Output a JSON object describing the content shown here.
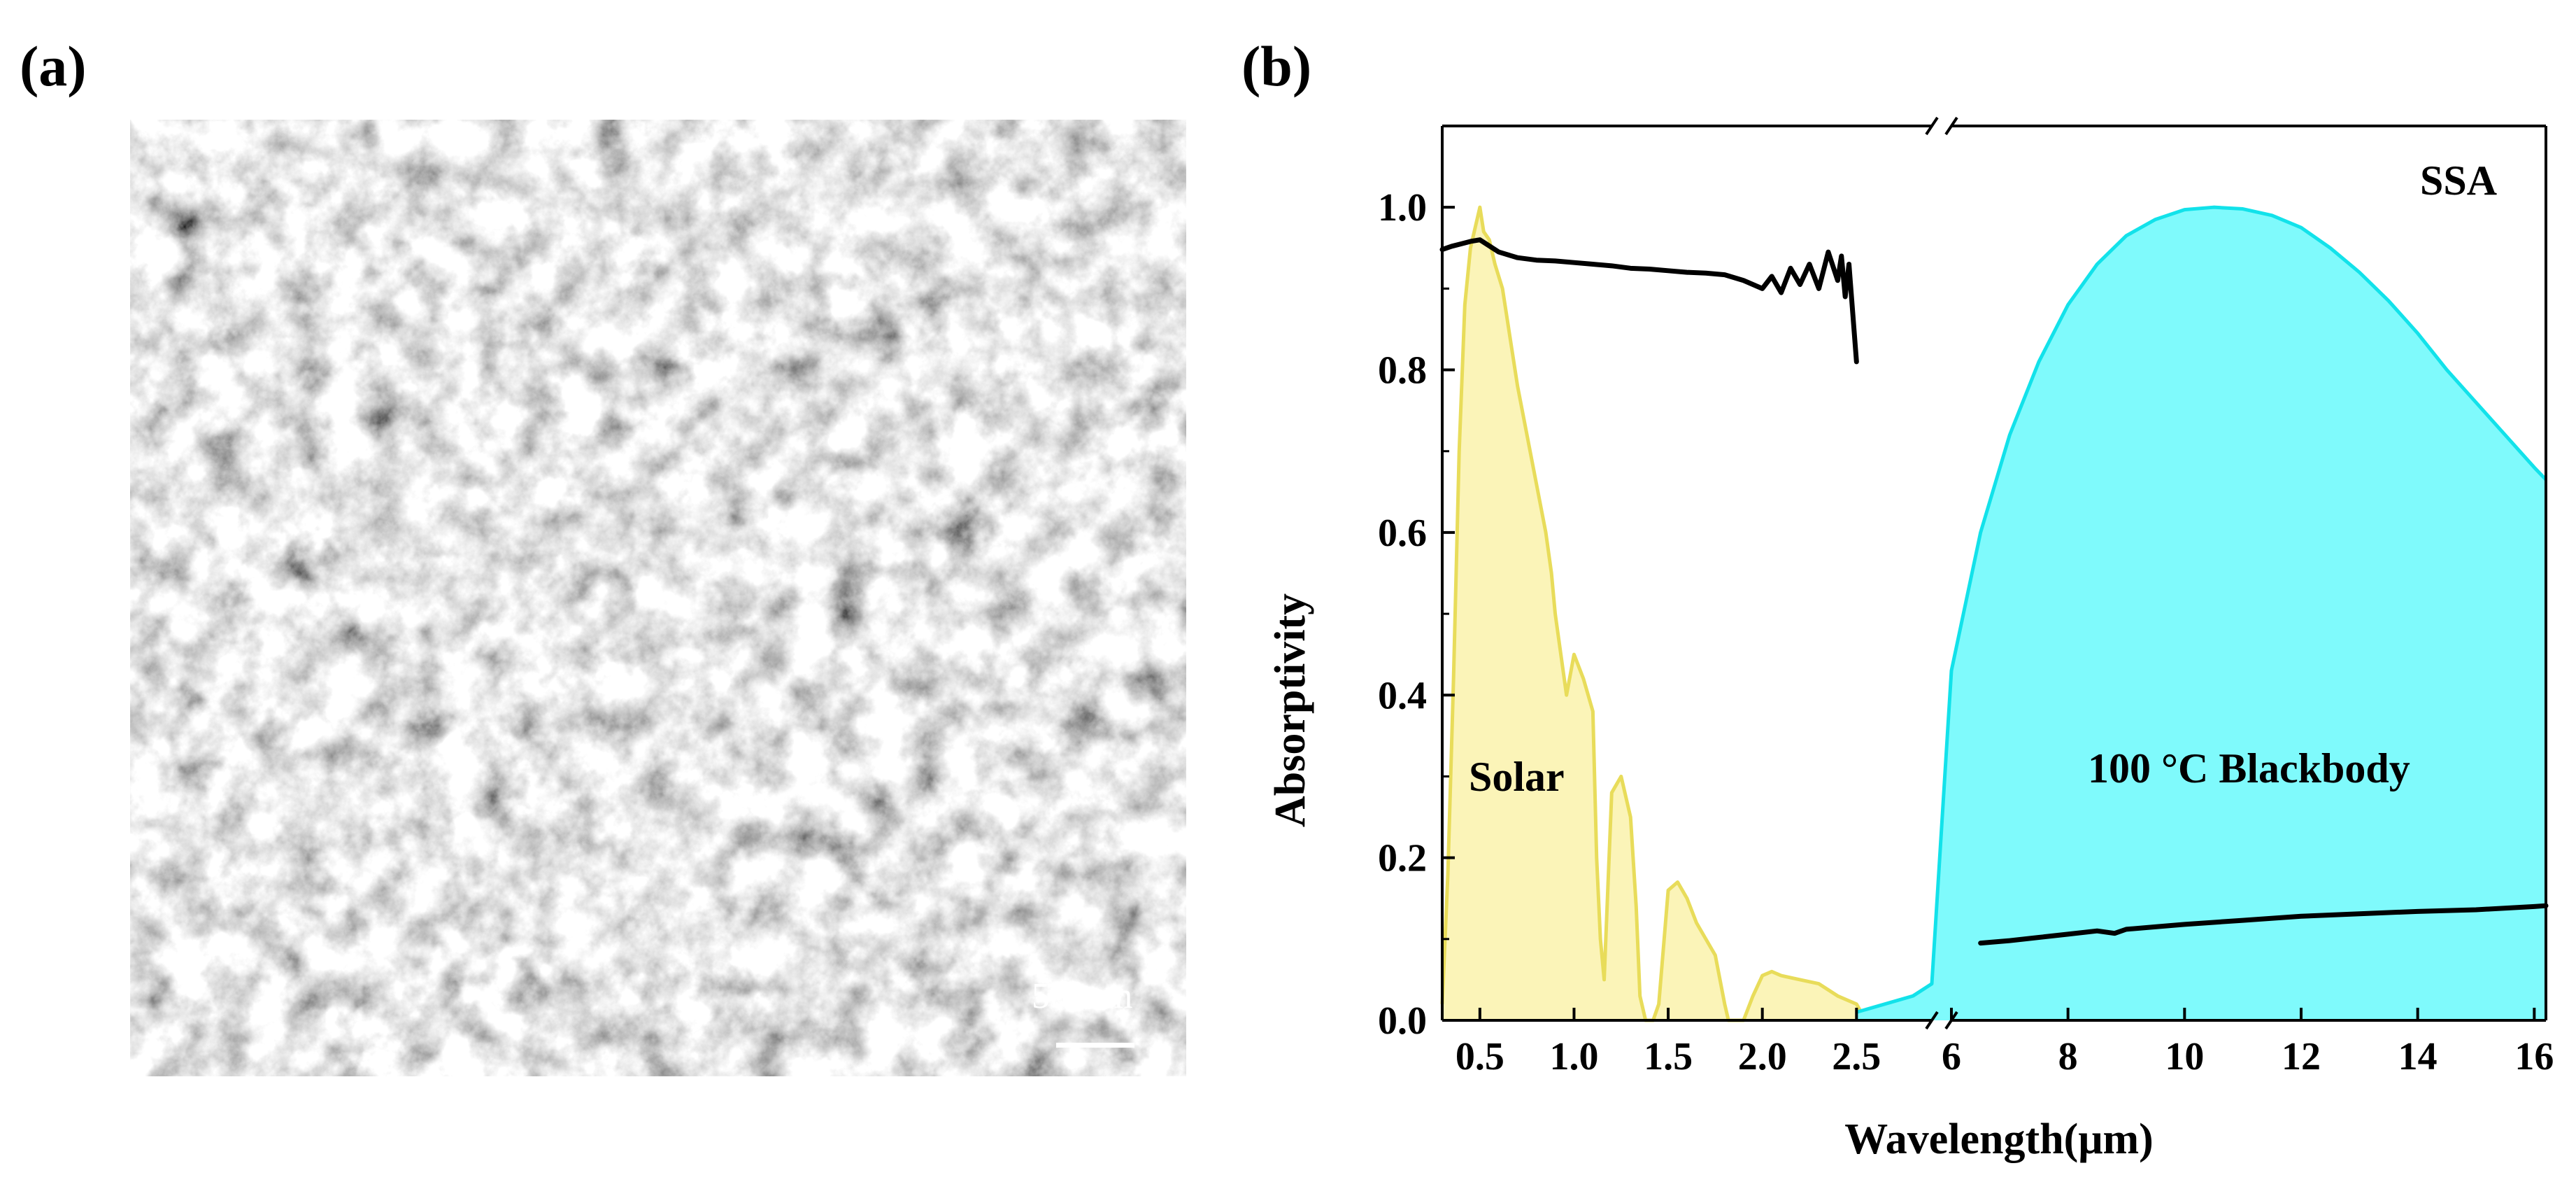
{
  "panels": {
    "a": "(a)",
    "b": "(b)"
  },
  "micrograph": {
    "scale_bar_label": "500nm"
  },
  "chart_data": {
    "type": "area",
    "xlabel": "Wavelength(μm)",
    "ylabel": "Absorptivity",
    "x_axis_broken": true,
    "segments": [
      {
        "xlim": [
          0.3,
          2.9
        ],
        "xticks": [
          0.5,
          1.0,
          1.5,
          2.0,
          2.5
        ],
        "tick_labels": [
          "0.5",
          "1.0",
          "1.5",
          "2.0",
          "2.5"
        ]
      },
      {
        "xlim": [
          6,
          16.2
        ],
        "xticks": [
          6,
          8,
          10,
          12,
          14,
          16
        ],
        "tick_labels": [
          "6",
          "8",
          "10",
          "12",
          "14",
          "16"
        ]
      }
    ],
    "ylim": [
      0,
      1.1
    ],
    "yticks": [
      0.0,
      0.2,
      0.4,
      0.6,
      0.8,
      1.0
    ],
    "ytick_labels": [
      "0.0",
      "0.2",
      "0.4",
      "0.6",
      "0.8",
      "1.0"
    ],
    "grid": false,
    "annotations": {
      "ssa": "SSA",
      "solar": "Solar",
      "blackbody": "100 °C Blackbody"
    },
    "colors": {
      "solar": "#e8dc5a",
      "solar_fill": "#fbf4b8",
      "blackbody": "#12e2ea",
      "blackbody_fill": "#7ffafc",
      "ssa": "#000000"
    },
    "series": [
      {
        "key": "ssa",
        "label": "SSA",
        "style": "line",
        "x": [
          0.3,
          0.35,
          0.4,
          0.45,
          0.5,
          0.6,
          0.7,
          0.8,
          0.9,
          1.0,
          1.1,
          1.2,
          1.3,
          1.4,
          1.5,
          1.6,
          1.7,
          1.8,
          1.9,
          2.0,
          2.05,
          2.1,
          2.15,
          2.2,
          2.25,
          2.3,
          2.35,
          2.4,
          2.42,
          2.44,
          2.46,
          2.48,
          2.5
        ],
        "y": [
          0.948,
          0.952,
          0.955,
          0.958,
          0.96,
          0.945,
          0.938,
          0.935,
          0.934,
          0.932,
          0.93,
          0.928,
          0.925,
          0.924,
          0.922,
          0.92,
          0.919,
          0.917,
          0.91,
          0.9,
          0.915,
          0.895,
          0.925,
          0.905,
          0.93,
          0.9,
          0.945,
          0.91,
          0.94,
          0.89,
          0.93,
          0.87,
          0.81
        ]
      },
      {
        "key": "ssa_ir",
        "label": "SSA",
        "style": "line",
        "x": [
          6.5,
          7,
          7.5,
          8,
          8.5,
          8.8,
          9,
          9.5,
          10,
          11,
          12,
          13,
          14,
          15,
          16,
          16.2
        ],
        "y": [
          0.095,
          0.098,
          0.102,
          0.106,
          0.11,
          0.107,
          0.112,
          0.115,
          0.118,
          0.123,
          0.128,
          0.131,
          0.134,
          0.136,
          0.14,
          0.141
        ]
      },
      {
        "key": "solar",
        "label": "Solar",
        "style": "area",
        "x": [
          0.3,
          0.33,
          0.36,
          0.39,
          0.42,
          0.45,
          0.48,
          0.5,
          0.52,
          0.55,
          0.58,
          0.62,
          0.66,
          0.7,
          0.75,
          0.8,
          0.85,
          0.88,
          0.9,
          0.93,
          0.96,
          1.0,
          1.05,
          1.1,
          1.12,
          1.14,
          1.16,
          1.2,
          1.25,
          1.3,
          1.33,
          1.35,
          1.38,
          1.42,
          1.45,
          1.5,
          1.55,
          1.6,
          1.65,
          1.7,
          1.75,
          1.8,
          1.82,
          1.9,
          1.95,
          2.0,
          2.05,
          2.1,
          2.2,
          2.3,
          2.4,
          2.5,
          2.55
        ],
        "y": [
          0.02,
          0.18,
          0.42,
          0.7,
          0.88,
          0.95,
          0.98,
          1.0,
          0.97,
          0.96,
          0.93,
          0.9,
          0.84,
          0.78,
          0.72,
          0.66,
          0.6,
          0.55,
          0.5,
          0.45,
          0.4,
          0.45,
          0.42,
          0.38,
          0.2,
          0.1,
          0.05,
          0.28,
          0.3,
          0.25,
          0.14,
          0.03,
          0.0,
          0.0,
          0.02,
          0.16,
          0.17,
          0.15,
          0.12,
          0.1,
          0.08,
          0.02,
          0.0,
          0.0,
          0.03,
          0.055,
          0.06,
          0.055,
          0.05,
          0.045,
          0.03,
          0.02,
          0.0
        ]
      },
      {
        "key": "blackbody",
        "label": "100 °C Blackbody",
        "style": "area",
        "x": [
          2.5,
          2.8,
          2.9,
          6,
          6.5,
          7,
          7.5,
          8,
          8.5,
          9,
          9.5,
          10,
          10.5,
          11,
          11.5,
          12,
          12.5,
          13,
          13.5,
          14,
          14.5,
          15,
          15.5,
          16,
          16.2
        ],
        "y": [
          0.01,
          0.03,
          0.045,
          0.43,
          0.6,
          0.72,
          0.81,
          0.88,
          0.93,
          0.965,
          0.985,
          0.997,
          1.0,
          0.998,
          0.99,
          0.975,
          0.95,
          0.92,
          0.885,
          0.845,
          0.8,
          0.76,
          0.72,
          0.68,
          0.665
        ]
      }
    ]
  }
}
